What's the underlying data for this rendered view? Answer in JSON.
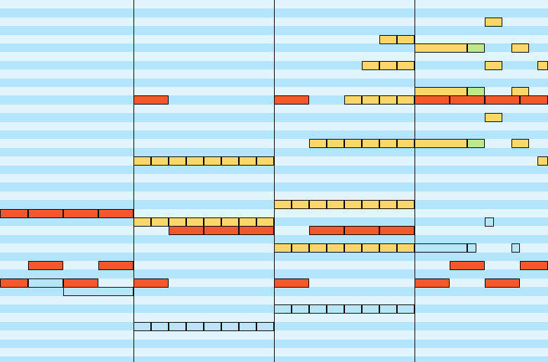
{
  "colors": {
    "row_light": "#e1f5fd",
    "row_dark": "#b3e5fc",
    "barline": "#000000",
    "note_red": "#f4582c",
    "note_yellow": "#fbd66b",
    "note_green": "#bfe88c",
    "note_blue": "#b8e6f8"
  },
  "piano_roll": {
    "pitch_rows": 42,
    "bars": 4,
    "steps_per_bar": 8,
    "notes": [
      {
        "bar": 0,
        "step": 0,
        "len": 2,
        "pitch": 24,
        "color": "red"
      },
      {
        "bar": 0,
        "step": 2,
        "len": 2,
        "pitch": 24,
        "color": "red"
      },
      {
        "bar": 0,
        "step": 4,
        "len": 2,
        "pitch": 24,
        "color": "red"
      },
      {
        "bar": 0,
        "step": 6,
        "len": 2,
        "pitch": 24,
        "color": "red"
      },
      {
        "bar": 0,
        "step": 2,
        "len": 2,
        "pitch": 30,
        "color": "red"
      },
      {
        "bar": 0,
        "step": 6,
        "len": 2,
        "pitch": 30,
        "color": "red"
      },
      {
        "bar": 0,
        "step": 0,
        "len": 2,
        "pitch": 32,
        "color": "red"
      },
      {
        "bar": 0,
        "step": 2,
        "len": 2,
        "pitch": 32,
        "color": "blue"
      },
      {
        "bar": 0,
        "step": 4,
        "len": 2,
        "pitch": 32,
        "color": "red"
      },
      {
        "bar": 0,
        "step": 4,
        "len": 4,
        "pitch": 33,
        "color": "blue"
      },
      {
        "bar": 1,
        "step": 0,
        "len": 2,
        "pitch": 11,
        "color": "red"
      },
      {
        "bar": 1,
        "step": 0,
        "len": 1,
        "pitch": 18,
        "color": "yellow"
      },
      {
        "bar": 1,
        "step": 1,
        "len": 1,
        "pitch": 18,
        "color": "yellow"
      },
      {
        "bar": 1,
        "step": 2,
        "len": 1,
        "pitch": 18,
        "color": "yellow"
      },
      {
        "bar": 1,
        "step": 3,
        "len": 1,
        "pitch": 18,
        "color": "yellow"
      },
      {
        "bar": 1,
        "step": 4,
        "len": 1,
        "pitch": 18,
        "color": "yellow"
      },
      {
        "bar": 1,
        "step": 5,
        "len": 1,
        "pitch": 18,
        "color": "yellow"
      },
      {
        "bar": 1,
        "step": 6,
        "len": 1,
        "pitch": 18,
        "color": "yellow"
      },
      {
        "bar": 1,
        "step": 7,
        "len": 1,
        "pitch": 18,
        "color": "yellow"
      },
      {
        "bar": 1,
        "step": 0,
        "len": 1,
        "pitch": 25,
        "color": "yellow"
      },
      {
        "bar": 1,
        "step": 1,
        "len": 1,
        "pitch": 25,
        "color": "yellow"
      },
      {
        "bar": 1,
        "step": 2,
        "len": 1,
        "pitch": 25,
        "color": "yellow"
      },
      {
        "bar": 1,
        "step": 3,
        "len": 1,
        "pitch": 25,
        "color": "yellow"
      },
      {
        "bar": 1,
        "step": 4,
        "len": 1,
        "pitch": 25,
        "color": "yellow"
      },
      {
        "bar": 1,
        "step": 5,
        "len": 1,
        "pitch": 25,
        "color": "yellow"
      },
      {
        "bar": 1,
        "step": 6,
        "len": 1,
        "pitch": 25,
        "color": "yellow"
      },
      {
        "bar": 1,
        "step": 7,
        "len": 1,
        "pitch": 25,
        "color": "yellow"
      },
      {
        "bar": 1,
        "step": 2,
        "len": 2,
        "pitch": 26,
        "color": "red"
      },
      {
        "bar": 1,
        "step": 4,
        "len": 2,
        "pitch": 26,
        "color": "red"
      },
      {
        "bar": 1,
        "step": 6,
        "len": 2,
        "pitch": 26,
        "color": "red"
      },
      {
        "bar": 1,
        "step": 0,
        "len": 2,
        "pitch": 32,
        "color": "red"
      },
      {
        "bar": 1,
        "step": 0,
        "len": 1,
        "pitch": 37,
        "color": "blue"
      },
      {
        "bar": 1,
        "step": 1,
        "len": 1,
        "pitch": 37,
        "color": "blue"
      },
      {
        "bar": 1,
        "step": 2,
        "len": 1,
        "pitch": 37,
        "color": "blue"
      },
      {
        "bar": 1,
        "step": 3,
        "len": 1,
        "pitch": 37,
        "color": "blue"
      },
      {
        "bar": 1,
        "step": 4,
        "len": 1,
        "pitch": 37,
        "color": "blue"
      },
      {
        "bar": 1,
        "step": 5,
        "len": 1,
        "pitch": 37,
        "color": "blue"
      },
      {
        "bar": 1,
        "step": 6,
        "len": 1,
        "pitch": 37,
        "color": "blue"
      },
      {
        "bar": 1,
        "step": 7,
        "len": 1,
        "pitch": 37,
        "color": "blue"
      },
      {
        "bar": 2,
        "step": 6,
        "len": 1,
        "pitch": 4,
        "color": "yellow"
      },
      {
        "bar": 2,
        "step": 7,
        "len": 1,
        "pitch": 4,
        "color": "yellow"
      },
      {
        "bar": 2,
        "step": 5,
        "len": 1,
        "pitch": 7,
        "color": "yellow"
      },
      {
        "bar": 2,
        "step": 6,
        "len": 1,
        "pitch": 7,
        "color": "yellow"
      },
      {
        "bar": 2,
        "step": 7,
        "len": 1,
        "pitch": 7,
        "color": "yellow"
      },
      {
        "bar": 2,
        "step": 0,
        "len": 2,
        "pitch": 11,
        "color": "red"
      },
      {
        "bar": 2,
        "step": 4,
        "len": 1,
        "pitch": 11,
        "color": "yellow"
      },
      {
        "bar": 2,
        "step": 5,
        "len": 1,
        "pitch": 11,
        "color": "yellow"
      },
      {
        "bar": 2,
        "step": 6,
        "len": 1,
        "pitch": 11,
        "color": "yellow"
      },
      {
        "bar": 2,
        "step": 7,
        "len": 1,
        "pitch": 11,
        "color": "yellow"
      },
      {
        "bar": 2,
        "step": 2,
        "len": 1,
        "pitch": 16,
        "color": "yellow"
      },
      {
        "bar": 2,
        "step": 3,
        "len": 1,
        "pitch": 16,
        "color": "yellow"
      },
      {
        "bar": 2,
        "step": 4,
        "len": 1,
        "pitch": 16,
        "color": "yellow"
      },
      {
        "bar": 2,
        "step": 5,
        "len": 1,
        "pitch": 16,
        "color": "yellow"
      },
      {
        "bar": 2,
        "step": 6,
        "len": 1,
        "pitch": 16,
        "color": "yellow"
      },
      {
        "bar": 2,
        "step": 7,
        "len": 1,
        "pitch": 16,
        "color": "yellow"
      },
      {
        "bar": 2,
        "step": 0,
        "len": 1,
        "pitch": 23,
        "color": "yellow"
      },
      {
        "bar": 2,
        "step": 1,
        "len": 1,
        "pitch": 23,
        "color": "yellow"
      },
      {
        "bar": 2,
        "step": 2,
        "len": 1,
        "pitch": 23,
        "color": "yellow"
      },
      {
        "bar": 2,
        "step": 3,
        "len": 1,
        "pitch": 23,
        "color": "yellow"
      },
      {
        "bar": 2,
        "step": 4,
        "len": 1,
        "pitch": 23,
        "color": "yellow"
      },
      {
        "bar": 2,
        "step": 5,
        "len": 1,
        "pitch": 23,
        "color": "yellow"
      },
      {
        "bar": 2,
        "step": 6,
        "len": 1,
        "pitch": 23,
        "color": "yellow"
      },
      {
        "bar": 2,
        "step": 7,
        "len": 1,
        "pitch": 23,
        "color": "yellow"
      },
      {
        "bar": 2,
        "step": 2,
        "len": 2,
        "pitch": 26,
        "color": "red"
      },
      {
        "bar": 2,
        "step": 4,
        "len": 2,
        "pitch": 26,
        "color": "red"
      },
      {
        "bar": 2,
        "step": 6,
        "len": 2,
        "pitch": 26,
        "color": "red"
      },
      {
        "bar": 2,
        "step": 0,
        "len": 1,
        "pitch": 28,
        "color": "yellow"
      },
      {
        "bar": 2,
        "step": 1,
        "len": 1,
        "pitch": 28,
        "color": "yellow"
      },
      {
        "bar": 2,
        "step": 2,
        "len": 1,
        "pitch": 28,
        "color": "yellow"
      },
      {
        "bar": 2,
        "step": 3,
        "len": 1,
        "pitch": 28,
        "color": "yellow"
      },
      {
        "bar": 2,
        "step": 4,
        "len": 1,
        "pitch": 28,
        "color": "yellow"
      },
      {
        "bar": 2,
        "step": 5,
        "len": 1,
        "pitch": 28,
        "color": "yellow"
      },
      {
        "bar": 2,
        "step": 6,
        "len": 1,
        "pitch": 28,
        "color": "yellow"
      },
      {
        "bar": 2,
        "step": 7,
        "len": 1,
        "pitch": 28,
        "color": "yellow"
      },
      {
        "bar": 2,
        "step": 0,
        "len": 2,
        "pitch": 32,
        "color": "red"
      },
      {
        "bar": 2,
        "step": 0,
        "len": 1,
        "pitch": 35,
        "color": "blue"
      },
      {
        "bar": 2,
        "step": 1,
        "len": 1,
        "pitch": 35,
        "color": "blue"
      },
      {
        "bar": 2,
        "step": 2,
        "len": 1,
        "pitch": 35,
        "color": "blue"
      },
      {
        "bar": 2,
        "step": 3,
        "len": 1,
        "pitch": 35,
        "color": "blue"
      },
      {
        "bar": 2,
        "step": 4,
        "len": 1,
        "pitch": 35,
        "color": "blue"
      },
      {
        "bar": 2,
        "step": 5,
        "len": 1,
        "pitch": 35,
        "color": "blue"
      },
      {
        "bar": 2,
        "step": 6,
        "len": 1,
        "pitch": 35,
        "color": "blue"
      },
      {
        "bar": 2,
        "step": 7,
        "len": 1,
        "pitch": 35,
        "color": "blue"
      },
      {
        "bar": 3,
        "step": 4,
        "len": 1,
        "pitch": 2,
        "color": "yellow"
      },
      {
        "bar": 3,
        "step": 0,
        "len": 3,
        "pitch": 5,
        "color": "yellow"
      },
      {
        "bar": 3,
        "step": 3,
        "len": 1,
        "pitch": 5,
        "color": "green"
      },
      {
        "bar": 3,
        "step": 5.5,
        "len": 1,
        "pitch": 5,
        "color": "yellow"
      },
      {
        "bar": 3,
        "step": 4,
        "len": 1,
        "pitch": 7,
        "color": "yellow"
      },
      {
        "bar": 3,
        "step": 7,
        "len": 1,
        "pitch": 7,
        "color": "yellow"
      },
      {
        "bar": 3,
        "step": 0,
        "len": 3,
        "pitch": 10,
        "color": "yellow"
      },
      {
        "bar": 3,
        "step": 3,
        "len": 1,
        "pitch": 10,
        "color": "green"
      },
      {
        "bar": 3,
        "step": 5.5,
        "len": 1,
        "pitch": 10,
        "color": "yellow"
      },
      {
        "bar": 3,
        "step": 0,
        "len": 2,
        "pitch": 11,
        "color": "red"
      },
      {
        "bar": 3,
        "step": 2,
        "len": 2,
        "pitch": 11,
        "color": "red"
      },
      {
        "bar": 3,
        "step": 4,
        "len": 2,
        "pitch": 11,
        "color": "red"
      },
      {
        "bar": 3,
        "step": 6,
        "len": 2,
        "pitch": 11,
        "color": "red"
      },
      {
        "bar": 3,
        "step": 4,
        "len": 1,
        "pitch": 13,
        "color": "yellow"
      },
      {
        "bar": 3,
        "step": 0,
        "len": 3,
        "pitch": 16,
        "color": "yellow"
      },
      {
        "bar": 3,
        "step": 3,
        "len": 1,
        "pitch": 16,
        "color": "green"
      },
      {
        "bar": 3,
        "step": 5.5,
        "len": 1,
        "pitch": 16,
        "color": "yellow"
      },
      {
        "bar": 3,
        "step": 7,
        "len": 1,
        "pitch": 18,
        "color": "yellow"
      },
      {
        "bar": 3,
        "step": 4,
        "len": 0.5,
        "pitch": 25,
        "color": "blue"
      },
      {
        "bar": 3,
        "step": 0,
        "len": 3,
        "pitch": 28,
        "color": "blue"
      },
      {
        "bar": 3,
        "step": 3,
        "len": 0.5,
        "pitch": 28,
        "color": "blue"
      },
      {
        "bar": 3,
        "step": 5.5,
        "len": 0.5,
        "pitch": 28,
        "color": "blue"
      },
      {
        "bar": 3,
        "step": 2,
        "len": 2,
        "pitch": 30,
        "color": "red"
      },
      {
        "bar": 3,
        "step": 6,
        "len": 2,
        "pitch": 30,
        "color": "red"
      },
      {
        "bar": 3,
        "step": 0,
        "len": 2,
        "pitch": 32,
        "color": "red"
      },
      {
        "bar": 3,
        "step": 4,
        "len": 2,
        "pitch": 32,
        "color": "red"
      }
    ]
  }
}
